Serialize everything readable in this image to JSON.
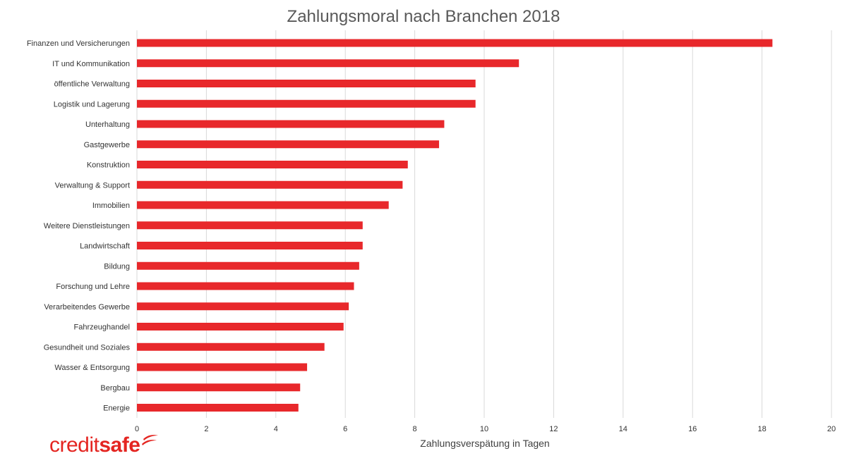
{
  "chart_data": {
    "type": "bar",
    "orientation": "horizontal",
    "title": "Zahlungsmoral nach Branchen 2018",
    "xlabel": "Zahlungsverspätung in Tagen",
    "ylabel": "",
    "xlim": [
      0,
      20
    ],
    "xticks": [
      "0",
      "2",
      "4",
      "6",
      "8",
      "10",
      "12",
      "14",
      "16",
      "18",
      "20"
    ],
    "grid": "vertical",
    "bar_color": "#e8282b",
    "categories": [
      "Finanzen und Versicherungen",
      "IT und Kommunikation",
      "öffentliche Verwaltung",
      "Logistik und Lagerung",
      "Unterhaltung",
      "Gastgewerbe",
      "Konstruktion",
      "Verwaltung & Support",
      "Immobilien",
      "Weitere Dienstleistungen",
      "Landwirtschaft",
      "Bildung",
      "Forschung und Lehre",
      "Verarbeitendes Gewerbe",
      "Fahrzeughandel",
      "Gesundheit und Soziales",
      "Wasser & Entsorgung",
      "Bergbau",
      "Energie"
    ],
    "values": [
      18.3,
      11.0,
      9.75,
      9.75,
      8.85,
      8.7,
      7.8,
      7.65,
      7.25,
      6.5,
      6.5,
      6.4,
      6.25,
      6.1,
      5.95,
      5.4,
      4.9,
      4.7,
      4.65
    ]
  },
  "logo": {
    "part1": "credit",
    "part2": "safe",
    "swoosh_icon": "creditsafe-swoosh-icon",
    "brand_color": "#e42521"
  }
}
